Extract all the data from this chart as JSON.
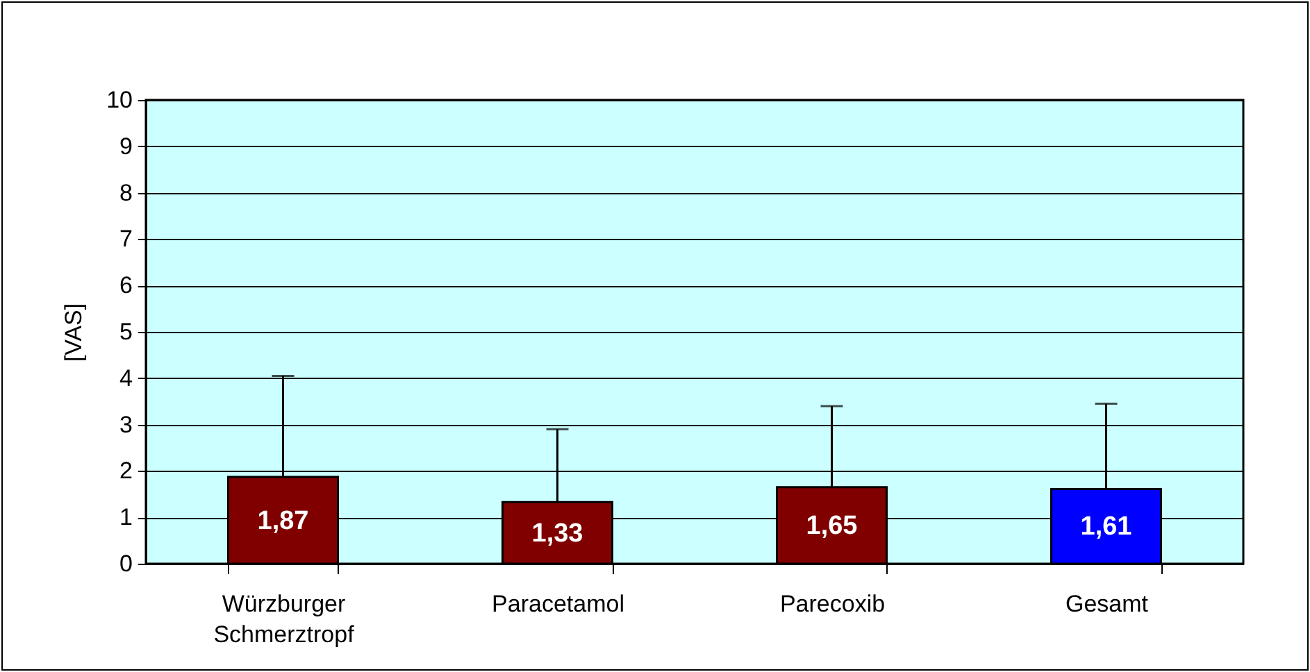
{
  "chart_data": {
    "type": "bar",
    "ylabel": "[VAS]",
    "categories": [
      "Würzburger Schmerztropf",
      "Paracetamol",
      "Parecoxib",
      "Gesamt"
    ],
    "values": [
      1.87,
      1.33,
      1.65,
      1.61
    ],
    "colors": [
      "#800000",
      "#800000",
      "#800000",
      "#0000ff"
    ],
    "value_labels": [
      "1,87",
      "1,33",
      "1,65",
      "1,61"
    ],
    "errors": [
      [
        1.87,
        4.05
      ],
      [
        1.33,
        2.9
      ],
      [
        1.65,
        3.4
      ],
      [
        1.61,
        3.45
      ]
    ],
    "ylim": [
      0,
      10
    ],
    "yticks": [
      0,
      1,
      2,
      3,
      4,
      5,
      6,
      7,
      8,
      9,
      10
    ],
    "grid": "y"
  }
}
